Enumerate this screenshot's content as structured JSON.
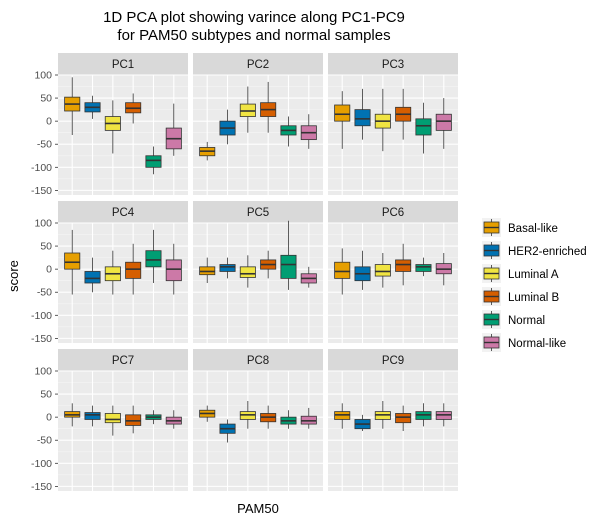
{
  "chart_data": {
    "type": "boxplot",
    "title_lines": [
      "1D PCA plot showing varince along PC1-PC9",
      "for PAM50 subtypes and normal samples"
    ],
    "xlabel": "PAM50",
    "ylabel": "score",
    "ylim": [
      -160,
      100
    ],
    "yticks": [
      100,
      50,
      0,
      -50,
      -100,
      -150
    ],
    "grid": true,
    "legend_position": "right",
    "legend": [
      "Basal-like",
      "HER2-enriched",
      "Luminal A",
      "Luminal B",
      "Normal",
      "Normal-like"
    ],
    "colors": {
      "Basal-like": "#E69F00",
      "HER2-enriched": "#0072B2",
      "Luminal A": "#F0E442",
      "Luminal B": "#D55E00",
      "Normal": "#009E73",
      "Normal-like": "#CC79A7"
    },
    "panels": [
      {
        "name": "PC1",
        "boxes": [
          {
            "group": "Basal-like",
            "whisker_low": -30,
            "q1": 22,
            "median": 37,
            "q3": 52,
            "whisker_high": 95
          },
          {
            "group": "HER2-enriched",
            "whisker_low": 5,
            "q1": 20,
            "median": 30,
            "q3": 40,
            "whisker_high": 55
          },
          {
            "group": "Luminal A",
            "whisker_low": -70,
            "q1": -20,
            "median": -5,
            "q3": 10,
            "whisker_high": 45
          },
          {
            "group": "Luminal B",
            "whisker_low": -5,
            "q1": 18,
            "median": 28,
            "q3": 40,
            "whisker_high": 60
          },
          {
            "group": "Normal",
            "whisker_low": -115,
            "q1": -100,
            "median": -85,
            "q3": -75,
            "whisker_high": -55
          },
          {
            "group": "Normal-like",
            "whisker_low": -75,
            "q1": -60,
            "median": -38,
            "q3": -15,
            "whisker_high": 38
          }
        ]
      },
      {
        "name": "PC2",
        "boxes": [
          {
            "group": "Basal-like",
            "whisker_low": -85,
            "q1": -75,
            "median": -65,
            "q3": -57,
            "whisker_high": -45
          },
          {
            "group": "HER2-enriched",
            "whisker_low": -50,
            "q1": -30,
            "median": -15,
            "q3": 0,
            "whisker_high": 25
          },
          {
            "group": "Luminal A",
            "whisker_low": -25,
            "q1": 10,
            "median": 22,
            "q3": 37,
            "whisker_high": 75
          },
          {
            "group": "Luminal B",
            "whisker_low": -25,
            "q1": 10,
            "median": 25,
            "q3": 40,
            "whisker_high": 85
          },
          {
            "group": "Normal",
            "whisker_low": -55,
            "q1": -30,
            "median": -20,
            "q3": -10,
            "whisker_high": 10
          },
          {
            "group": "Normal-like",
            "whisker_low": -60,
            "q1": -40,
            "median": -25,
            "q3": -10,
            "whisker_high": 15
          }
        ]
      },
      {
        "name": "PC3",
        "boxes": [
          {
            "group": "Basal-like",
            "whisker_low": -60,
            "q1": 0,
            "median": 15,
            "q3": 35,
            "whisker_high": 65
          },
          {
            "group": "HER2-enriched",
            "whisker_low": -40,
            "q1": -10,
            "median": 5,
            "q3": 25,
            "whisker_high": 70
          },
          {
            "group": "Luminal A",
            "whisker_low": -65,
            "q1": -15,
            "median": 0,
            "q3": 15,
            "whisker_high": 70
          },
          {
            "group": "Luminal B",
            "whisker_low": -40,
            "q1": 0,
            "median": 15,
            "q3": 30,
            "whisker_high": 70
          },
          {
            "group": "Normal",
            "whisker_low": -70,
            "q1": -30,
            "median": -10,
            "q3": 5,
            "whisker_high": 40
          },
          {
            "group": "Normal-like",
            "whisker_low": -60,
            "q1": -20,
            "median": 0,
            "q3": 15,
            "whisker_high": 50
          }
        ]
      },
      {
        "name": "PC4",
        "boxes": [
          {
            "group": "Basal-like",
            "whisker_low": -55,
            "q1": 0,
            "median": 15,
            "q3": 35,
            "whisker_high": 85
          },
          {
            "group": "HER2-enriched",
            "whisker_low": -50,
            "q1": -30,
            "median": -20,
            "q3": -5,
            "whisker_high": 25
          },
          {
            "group": "Luminal A",
            "whisker_low": -55,
            "q1": -25,
            "median": -10,
            "q3": 5,
            "whisker_high": 40
          },
          {
            "group": "Luminal B",
            "whisker_low": -55,
            "q1": -20,
            "median": 0,
            "q3": 15,
            "whisker_high": 55
          },
          {
            "group": "Normal",
            "whisker_low": -30,
            "q1": 5,
            "median": 20,
            "q3": 40,
            "whisker_high": 85
          },
          {
            "group": "Normal-like",
            "whisker_low": -55,
            "q1": -25,
            "median": 0,
            "q3": 20,
            "whisker_high": 55
          }
        ]
      },
      {
        "name": "PC5",
        "boxes": [
          {
            "group": "Basal-like",
            "whisker_low": -30,
            "q1": -12,
            "median": -5,
            "q3": 5,
            "whisker_high": 25
          },
          {
            "group": "HER2-enriched",
            "whisker_low": -20,
            "q1": -5,
            "median": 5,
            "q3": 10,
            "whisker_high": 25
          },
          {
            "group": "Luminal A",
            "whisker_low": -40,
            "q1": -18,
            "median": -10,
            "q3": 5,
            "whisker_high": 30
          },
          {
            "group": "Luminal B",
            "whisker_low": -20,
            "q1": 0,
            "median": 10,
            "q3": 20,
            "whisker_high": 40
          },
          {
            "group": "Normal",
            "whisker_low": -45,
            "q1": -20,
            "median": 10,
            "q3": 30,
            "whisker_high": 105
          },
          {
            "group": "Normal-like",
            "whisker_low": -40,
            "q1": -30,
            "median": -20,
            "q3": -10,
            "whisker_high": 5
          }
        ]
      },
      {
        "name": "PC6",
        "boxes": [
          {
            "group": "Basal-like",
            "whisker_low": -55,
            "q1": -20,
            "median": -5,
            "q3": 15,
            "whisker_high": 45
          },
          {
            "group": "HER2-enriched",
            "whisker_low": -45,
            "q1": -25,
            "median": -10,
            "q3": 5,
            "whisker_high": 40
          },
          {
            "group": "Luminal A",
            "whisker_low": -40,
            "q1": -15,
            "median": -5,
            "q3": 10,
            "whisker_high": 35
          },
          {
            "group": "Luminal B",
            "whisker_low": -35,
            "q1": -5,
            "median": 10,
            "q3": 20,
            "whisker_high": 55
          },
          {
            "group": "Normal",
            "whisker_low": -15,
            "q1": -5,
            "median": 5,
            "q3": 10,
            "whisker_high": 25
          },
          {
            "group": "Normal-like",
            "whisker_low": -35,
            "q1": -10,
            "median": 0,
            "q3": 12,
            "whisker_high": 35
          }
        ]
      },
      {
        "name": "PC7",
        "boxes": [
          {
            "group": "Basal-like",
            "whisker_low": -20,
            "q1": 0,
            "median": 5,
            "q3": 12,
            "whisker_high": 30
          },
          {
            "group": "HER2-enriched",
            "whisker_low": -20,
            "q1": -5,
            "median": 5,
            "q3": 10,
            "whisker_high": 25
          },
          {
            "group": "Luminal A",
            "whisker_low": -40,
            "q1": -12,
            "median": -5,
            "q3": 8,
            "whisker_high": 25
          },
          {
            "group": "Luminal B",
            "whisker_low": -35,
            "q1": -18,
            "median": -8,
            "q3": 5,
            "whisker_high": 25
          },
          {
            "group": "Normal",
            "whisker_low": -15,
            "q1": -5,
            "median": 0,
            "q3": 5,
            "whisker_high": 15
          },
          {
            "group": "Normal-like",
            "whisker_low": -25,
            "q1": -15,
            "median": -8,
            "q3": 0,
            "whisker_high": 15
          }
        ]
      },
      {
        "name": "PC8",
        "boxes": [
          {
            "group": "Basal-like",
            "whisker_low": -10,
            "q1": 0,
            "median": 8,
            "q3": 15,
            "whisker_high": 25
          },
          {
            "group": "HER2-enriched",
            "whisker_low": -55,
            "q1": -35,
            "median": -25,
            "q3": -15,
            "whisker_high": -5
          },
          {
            "group": "Luminal A",
            "whisker_low": -25,
            "q1": -5,
            "median": 5,
            "q3": 12,
            "whisker_high": 35
          },
          {
            "group": "Luminal B",
            "whisker_low": -25,
            "q1": -10,
            "median": 0,
            "q3": 8,
            "whisker_high": 25
          },
          {
            "group": "Normal",
            "whisker_low": -25,
            "q1": -15,
            "median": -8,
            "q3": 0,
            "whisker_high": 15
          },
          {
            "group": "Normal-like",
            "whisker_low": -25,
            "q1": -15,
            "median": -8,
            "q3": 2,
            "whisker_high": 20
          }
        ]
      },
      {
        "name": "PC9",
        "boxes": [
          {
            "group": "Basal-like",
            "whisker_low": -25,
            "q1": -5,
            "median": 5,
            "q3": 12,
            "whisker_high": 30
          },
          {
            "group": "HER2-enriched",
            "whisker_low": -30,
            "q1": -25,
            "median": -15,
            "q3": -5,
            "whisker_high": 5
          },
          {
            "group": "Luminal A",
            "whisker_low": -25,
            "q1": -5,
            "median": 5,
            "q3": 12,
            "whisker_high": 35
          },
          {
            "group": "Luminal B",
            "whisker_low": -30,
            "q1": -12,
            "median": 0,
            "q3": 8,
            "whisker_high": 25
          },
          {
            "group": "Normal",
            "whisker_low": -20,
            "q1": -5,
            "median": 5,
            "q3": 12,
            "whisker_high": 30
          },
          {
            "group": "Normal-like",
            "whisker_low": -20,
            "q1": -5,
            "median": 5,
            "q3": 12,
            "whisker_high": 30
          }
        ]
      }
    ]
  }
}
